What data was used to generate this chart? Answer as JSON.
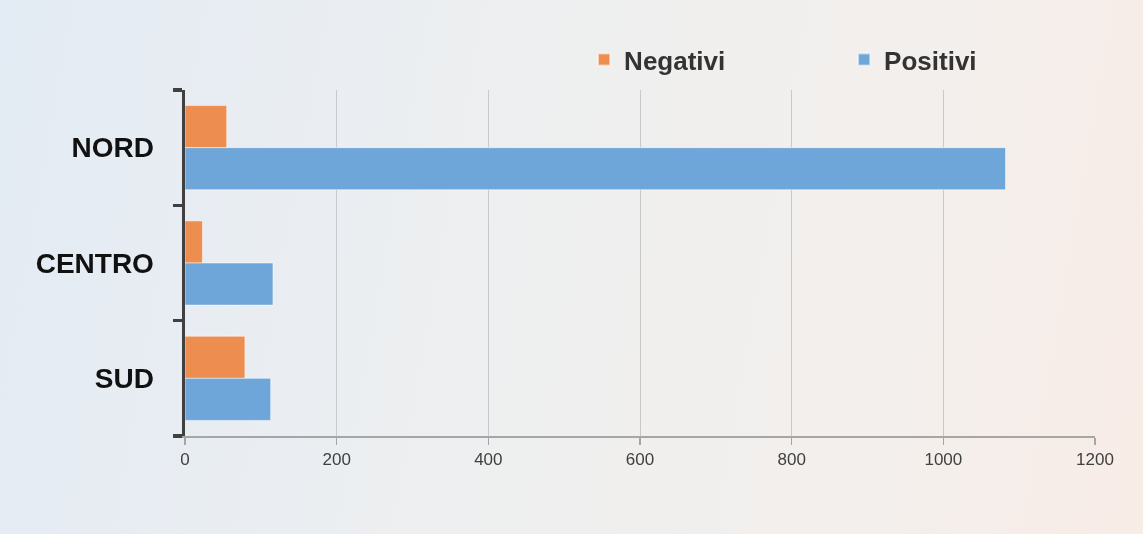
{
  "chart_data": {
    "type": "bar",
    "orientation": "horizontal",
    "categories": [
      "NORD",
      "CENTRO",
      "SUD"
    ],
    "series": [
      {
        "name": "Negativi",
        "color": "#ed8d4f",
        "values": [
          55,
          23,
          79
        ]
      },
      {
        "name": "Positivi",
        "color": "#6fa6d9",
        "values": [
          1082,
          116,
          113
        ]
      }
    ],
    "xlim": [
      0,
      1200
    ],
    "xticks": [
      0,
      200,
      400,
      600,
      800,
      1000,
      1200
    ],
    "grid": "x",
    "legend": "top right"
  }
}
